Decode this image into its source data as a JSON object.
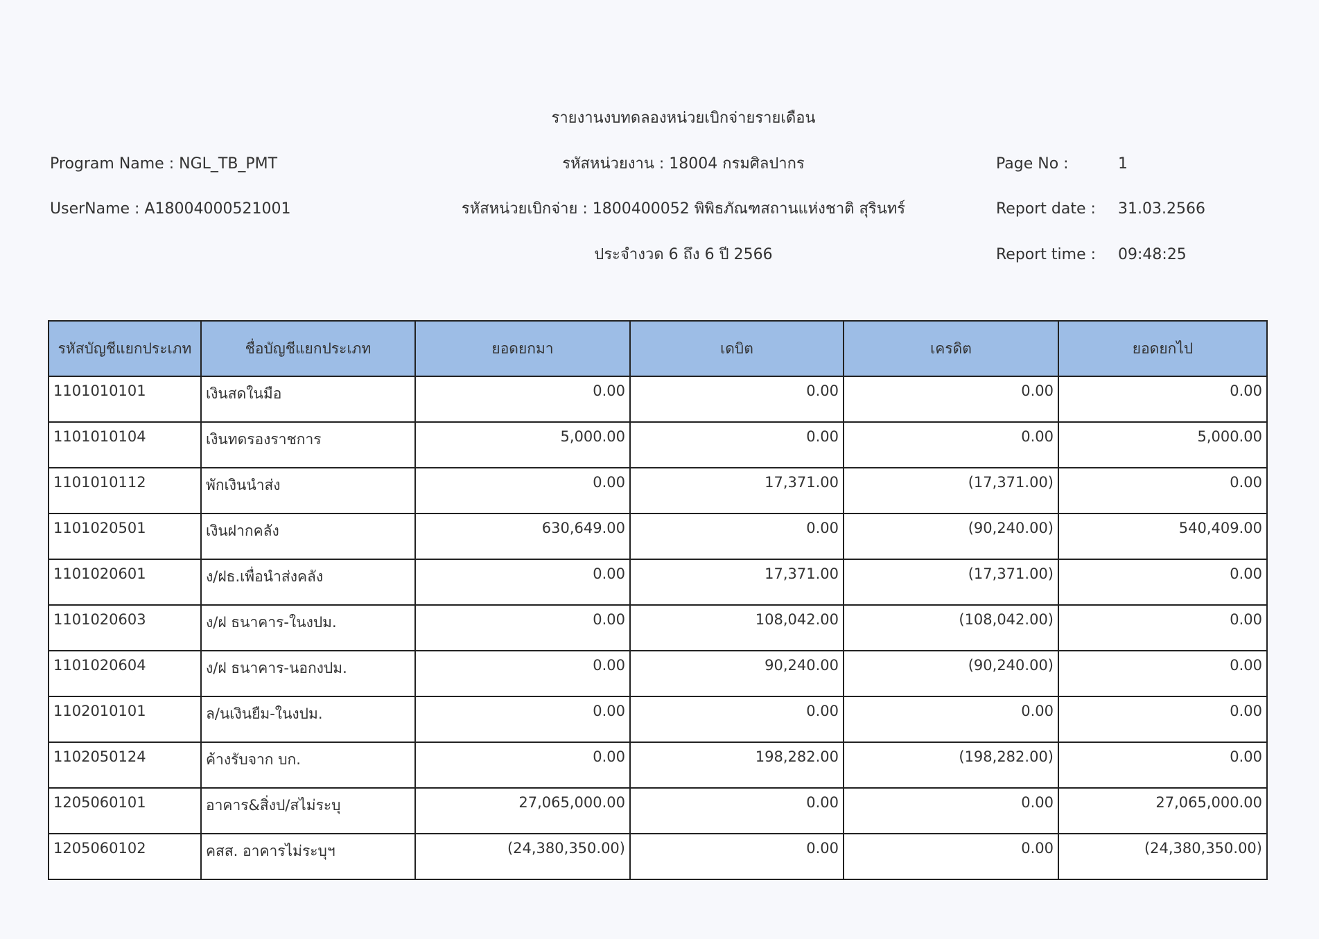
{
  "header": {
    "title": "รายงานงบทดลองหน่วยเบิกจ่ายรายเดือน",
    "program_name": "Program Name : NGL_TB_PMT",
    "user_name": "UserName : A18004000521001",
    "agency": "รหัสหน่วยงาน : 18004 กรมศิลปากร",
    "disbursing_unit": "รหัสหน่วยเบิกจ่าย : 1800400052 พิพิธภัณฑสถานแห่งชาติ สุรินทร์",
    "period": "ประจำงวด 6 ถึง 6 ปี 2566",
    "page_no_label": "Page No :",
    "page_no": "1",
    "report_date_label": "Report date :",
    "report_date": "31.03.2566",
    "report_time_label": "Report time :",
    "report_time": "09:48:25"
  },
  "table": {
    "columns": [
      "รหัสบัญชีแยกประเภท",
      "ชื่อบัญชีแยกประเภท",
      "ยอดยกมา",
      "เดบิต",
      "เครดิต",
      "ยอดยกไป"
    ],
    "rows": [
      [
        "1101010101",
        "เงินสดในมือ",
        "0.00",
        "0.00",
        "0.00",
        "0.00"
      ],
      [
        "1101010104",
        "เงินทดรองราชการ",
        "5,000.00",
        "0.00",
        "0.00",
        "5,000.00"
      ],
      [
        "1101010112",
        "พักเงินนำส่ง",
        "0.00",
        "17,371.00",
        "(17,371.00)",
        "0.00"
      ],
      [
        "1101020501",
        "เงินฝากคลัง",
        "630,649.00",
        "0.00",
        "(90,240.00)",
        "540,409.00"
      ],
      [
        "1101020601",
        "ง/ฝธ.เพื่อนำส่งคลัง",
        "0.00",
        "17,371.00",
        "(17,371.00)",
        "0.00"
      ],
      [
        "1101020603",
        "ง/ฝ ธนาคาร-ในงปม.",
        "0.00",
        "108,042.00",
        "(108,042.00)",
        "0.00"
      ],
      [
        "1101020604",
        "ง/ฝ ธนาคาร-นอกงปม.",
        "0.00",
        "90,240.00",
        "(90,240.00)",
        "0.00"
      ],
      [
        "1102010101",
        "ล/นเงินยืม-ในงปม.",
        "0.00",
        "0.00",
        "0.00",
        "0.00"
      ],
      [
        "1102050124",
        "ค้างรับจาก บก.",
        "0.00",
        "198,282.00",
        "(198,282.00)",
        "0.00"
      ],
      [
        "1205060101",
        "อาคาร&สิ่งป/สไม่ระบุ",
        "27,065,000.00",
        "0.00",
        "0.00",
        "27,065,000.00"
      ],
      [
        "1205060102",
        "คสส. อาคารไม่ระบุฯ",
        "(24,380,350.00)",
        "0.00",
        "0.00",
        "(24,380,350.00)"
      ]
    ]
  }
}
